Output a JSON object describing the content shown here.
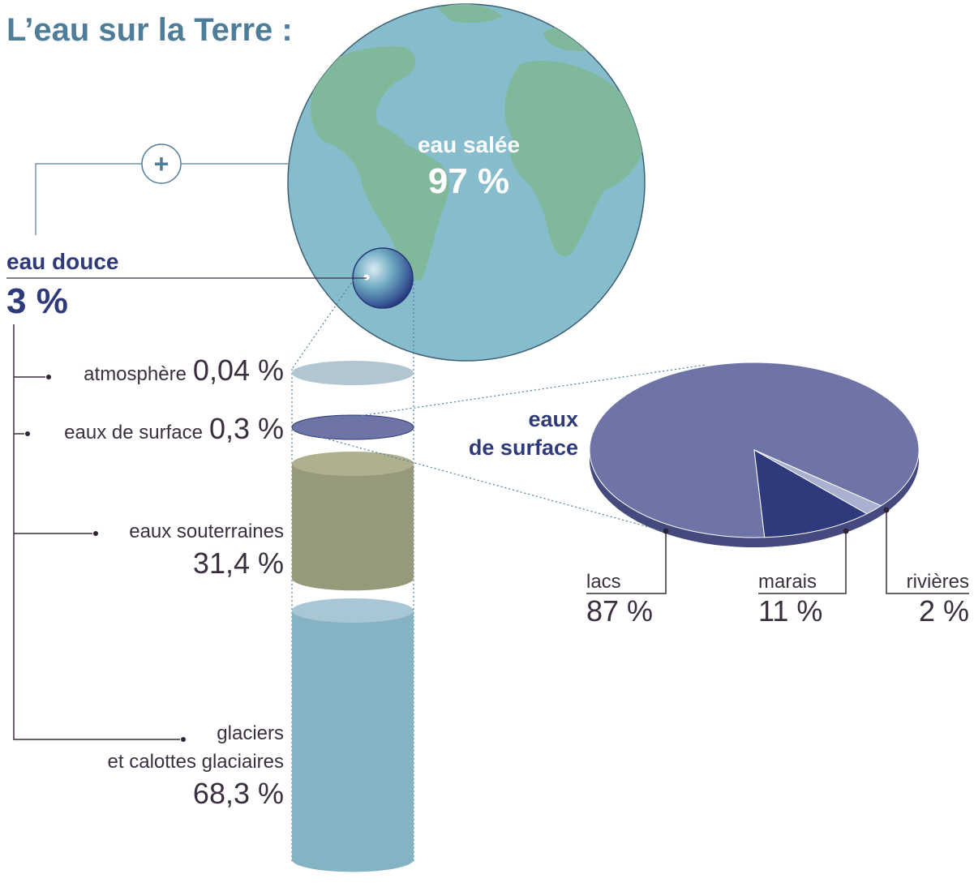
{
  "title": "L’eau sur la Terre :",
  "plus_symbol": "+",
  "salt_water": {
    "label": "eau salée",
    "value_text": "97 %",
    "value": 97
  },
  "fresh_water": {
    "label": "eau douce",
    "value_text": "3 %",
    "value": 3
  },
  "colors": {
    "title": "#4e7d9a",
    "ocean": "#86bccc",
    "land": "#80b89c",
    "dark_blue": "#2f3a7a",
    "surface": "#6f74a6",
    "marais": "#2e3a7c",
    "rivieres": "#aab0cf",
    "groundwater": "#96997a",
    "glacier": "#84b3c4",
    "atmosphere": "#b2c6d2"
  },
  "chart_data": [
    {
      "type": "bar",
      "title": "eau douce",
      "categories": [
        "atmosphère",
        "eaux de surface",
        "eaux souterraines",
        "glaciers et calottes glaciaires"
      ],
      "values": [
        0.04,
        0.3,
        31.4,
        68.3
      ],
      "value_labels": [
        "0,04 %",
        "0,3 %",
        "31,4 %",
        "68,3 %"
      ],
      "category_lines": [
        [
          "atmosphère"
        ],
        [
          "eaux de surface"
        ],
        [
          "eaux souterraines"
        ],
        [
          "glaciers",
          "et calottes glaciaires"
        ]
      ]
    },
    {
      "type": "pie",
      "title": "eaux de surface",
      "title_lines": [
        "eaux",
        "de surface"
      ],
      "categories": [
        "lacs",
        "marais",
        "rivières"
      ],
      "values": [
        87,
        11,
        2
      ],
      "value_labels": [
        "87 %",
        "11 %",
        "2 %"
      ]
    }
  ]
}
